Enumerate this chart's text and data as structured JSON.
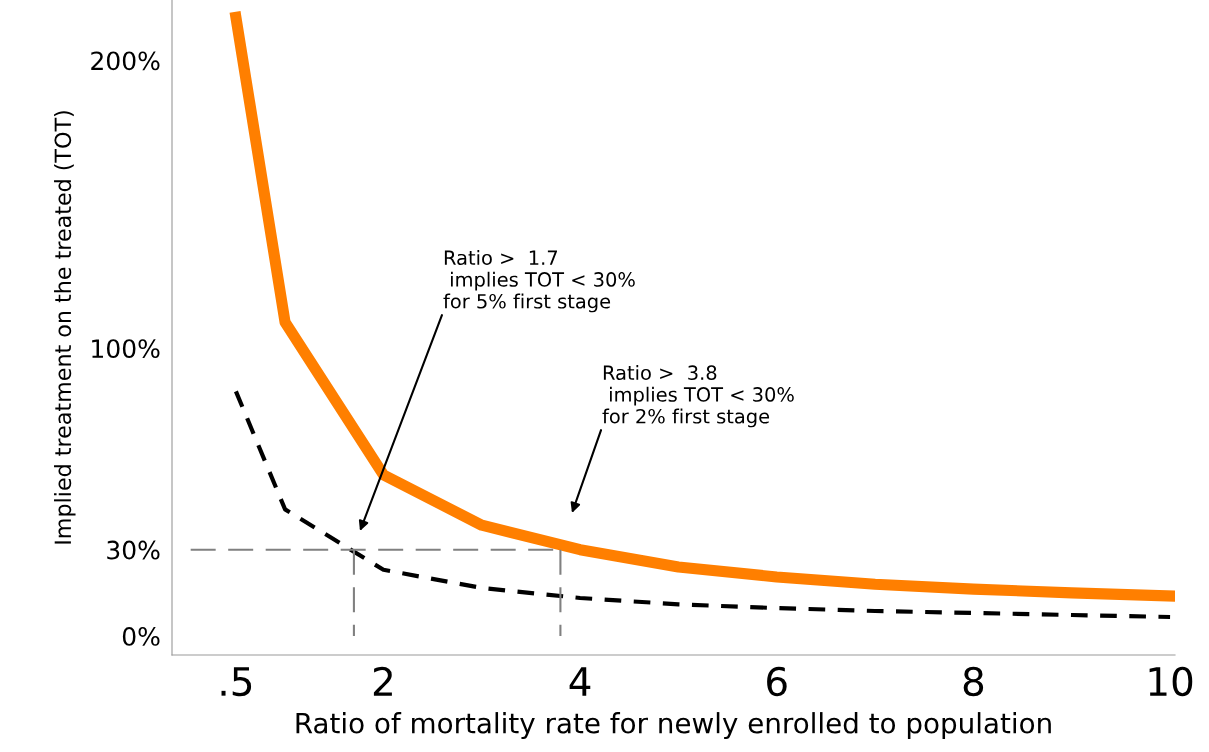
{
  "chart_data": {
    "type": "line",
    "xlabel": "Ratio of mortality rate for newly enrolled to population",
    "ylabel": "Implied treatment on the treated (TOT)",
    "x": [
      0.5,
      1,
      2,
      3,
      4,
      5,
      6,
      7,
      8,
      9,
      10
    ],
    "series": [
      {
        "color": "#ff7f00",
        "line_style": "solid",
        "values": [
          215,
          109,
          56,
          38.5,
          30,
          24,
          20.5,
          18,
          16.3,
          15,
          13.9
        ]
      },
      {
        "color": "#000000",
        "line_style": "dashed",
        "values": [
          85,
          44,
          23,
          16.7,
          13.2,
          11,
          9.7,
          8.7,
          8,
          7.3,
          6.6
        ]
      },
      {
        "color": "#808080",
        "line_style": "dashed",
        "x": [
          0.04,
          3.8
        ],
        "values": [
          30,
          30
        ]
      },
      {
        "color": "#808080",
        "line_style": "dashed",
        "x": [
          1.7,
          1.7
        ],
        "values": [
          30,
          0
        ]
      },
      {
        "color": "#808080",
        "line_style": "dashed",
        "x": [
          3.8,
          3.8
        ],
        "values": [
          30,
          0
        ]
      }
    ],
    "xlim": [
      -0.15,
      10.05
    ],
    "ylim": [
      -6.6,
      221
    ],
    "xticks": [
      {
        "value": 0.5,
        "label": ".5"
      },
      2,
      4,
      6,
      8,
      10
    ],
    "yticks": [
      {
        "value": 0,
        "label": "0%"
      },
      {
        "value": 30,
        "label": "30%"
      },
      {
        "value": 100,
        "label": "100%"
      },
      {
        "value": 200,
        "label": "200%"
      }
    ],
    "annotations": [
      "Ratio >  1.7\n implies TOT < 30%\nfor 5% first stage",
      "Ratio >  3.8\n implies TOT < 30%\nfor 2% first stage"
    ],
    "grid": false,
    "legend": false,
    "marker": "none"
  }
}
